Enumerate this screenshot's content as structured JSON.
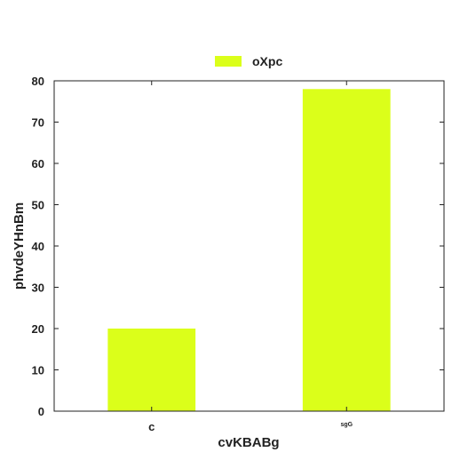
{
  "chart_data": {
    "type": "bar",
    "categories": [
      "c",
      "sgG"
    ],
    "series": [
      {
        "name": "oXpc",
        "values": [
          20,
          78
        ],
        "color": "#dbff1a"
      }
    ],
    "xlabel": "cvKBABg",
    "ylabel": "phvdeYHnBm",
    "ylim": [
      0,
      80
    ],
    "yticks": [
      0,
      10,
      20,
      30,
      40,
      50,
      60,
      70,
      80
    ],
    "grid": false,
    "legend_position": "top-center"
  }
}
